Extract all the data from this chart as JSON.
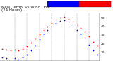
{
  "title": "Milw. Temp. vs Wind Chill",
  "title2": "(24 Hours)",
  "background_color": "#ffffff",
  "plot_bg": "#ffffff",
  "grid_color": "#888888",
  "temp_color": "#ff0000",
  "wc_color": "#0000ff",
  "hours": [
    0,
    1,
    2,
    3,
    4,
    5,
    6,
    7,
    8,
    9,
    10,
    11,
    12,
    13,
    14,
    15,
    16,
    17,
    18,
    19,
    20,
    21,
    22,
    23
  ],
  "temp_vals": [
    14,
    13,
    12,
    13,
    12,
    14,
    17,
    21,
    26,
    31,
    36,
    40,
    44,
    48,
    50,
    51,
    49,
    45,
    42,
    38,
    34,
    28,
    22,
    18
  ],
  "wc_vals": [
    4,
    3,
    2,
    3,
    2,
    4,
    7,
    12,
    18,
    25,
    31,
    36,
    40,
    44,
    46,
    47,
    45,
    40,
    36,
    31,
    26,
    19,
    12,
    7
  ],
  "ylim": [
    0,
    55
  ],
  "yticks": [
    10,
    20,
    30,
    40,
    50
  ],
  "marker_size": 1.5,
  "title_fontsize": 4.0,
  "tick_fontsize": 3.2,
  "legend_bar_color_temp": "#ff0000",
  "legend_bar_color_wc": "#0000ff",
  "grid_hours": [
    3,
    6,
    9,
    12,
    15,
    18,
    21
  ],
  "xtick_step": 2
}
